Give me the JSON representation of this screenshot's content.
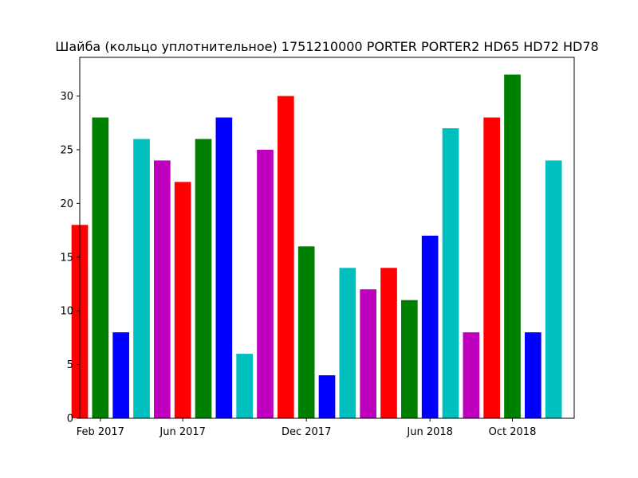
{
  "chart_data": {
    "type": "bar",
    "title": "Шайба (кольцо уплотнительное) 1751210000 PORTER PORTER2 HD65 HD72 HD78",
    "xlabel": "",
    "ylabel": "",
    "x_unit": "month",
    "x": [
      "2017-01",
      "2017-02",
      "2017-03",
      "2017-04",
      "2017-05",
      "2017-06",
      "2017-07",
      "2017-08",
      "2017-09",
      "2017-10",
      "2017-11",
      "2017-12",
      "2018-01",
      "2018-02",
      "2018-03",
      "2018-04",
      "2018-05",
      "2018-06",
      "2018-07",
      "2018-08",
      "2018-09",
      "2018-10",
      "2018-11",
      "2018-12",
      "2019-01"
    ],
    "values": [
      18,
      28,
      8,
      26,
      24,
      22,
      26,
      28,
      6,
      25,
      30,
      16,
      4,
      14,
      12,
      14,
      11,
      17,
      27,
      8,
      28,
      32,
      8,
      24,
      0
    ],
    "colors": [
      "#ff0000",
      "#008000",
      "#0000ff",
      "#00bfbf",
      "#bf00bf",
      "#ff0000",
      "#008000",
      "#0000ff",
      "#00bfbf",
      "#bf00bf",
      "#ff0000",
      "#008000",
      "#0000ff",
      "#00bfbf",
      "#bf00bf",
      "#ff0000",
      "#008000",
      "#0000ff",
      "#00bfbf",
      "#bf00bf",
      "#ff0000",
      "#008000",
      "#0000ff",
      "#00bfbf",
      "#bf00bf"
    ],
    "xlim": [
      "2017-01",
      "2019-01"
    ],
    "ylim": [
      0,
      33.6
    ],
    "x_ticks": [
      {
        "x": "2017-02",
        "label": "Feb 2017"
      },
      {
        "x": "2017-06",
        "label": "Jun 2017"
      },
      {
        "x": "2017-12",
        "label": "Dec 2017"
      },
      {
        "x": "2018-06",
        "label": "Jun 2018"
      },
      {
        "x": "2018-10",
        "label": "Oct 2018"
      }
    ],
    "y_ticks": [
      {
        "value": 0,
        "label": "0"
      },
      {
        "value": 5,
        "label": "5"
      },
      {
        "value": 10,
        "label": "10"
      },
      {
        "value": 15,
        "label": "15"
      },
      {
        "value": 20,
        "label": "20"
      },
      {
        "value": 25,
        "label": "25"
      },
      {
        "value": 30,
        "label": "30"
      }
    ],
    "grid": false,
    "legend": "none"
  }
}
